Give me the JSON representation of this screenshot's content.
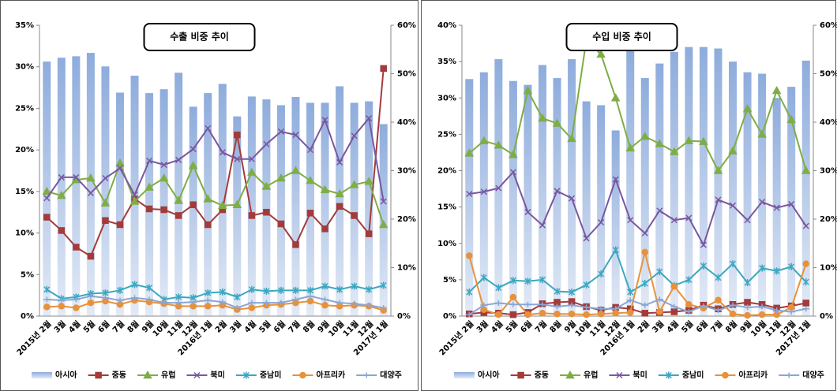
{
  "chart_data": [
    {
      "type": "bar-line",
      "title": "수출 비중 추이",
      "categories": [
        "2015년 2월",
        "3월",
        "4월",
        "5월",
        "6월",
        "7월",
        "8월",
        "9월",
        "10월",
        "11월",
        "12월",
        "2016년 1월",
        "2월",
        "3월",
        "4월",
        "5월",
        "6월",
        "7월",
        "8월",
        "9월",
        "10월",
        "11월",
        "12월",
        "2017년 1월"
      ],
      "ylim": [
        0,
        35
      ],
      "yticks": [
        {
          "value": 0,
          "label": "0%"
        },
        {
          "value": 5,
          "label": "5%"
        },
        {
          "value": 10,
          "label": "10%"
        },
        {
          "value": 15,
          "label": "15%"
        },
        {
          "value": 20,
          "label": "20%"
        },
        {
          "value": 25,
          "label": "25%"
        },
        {
          "value": 30,
          "label": "30%"
        },
        {
          "value": 35,
          "label": "35%"
        }
      ],
      "y2lim": [
        0,
        60
      ],
      "y2ticks": [
        {
          "value": 0,
          "label": "0%"
        },
        {
          "value": 10,
          "label": "10%"
        },
        {
          "value": 20,
          "label": "20%"
        },
        {
          "value": 30,
          "label": "30%"
        },
        {
          "value": 40,
          "label": "40%"
        },
        {
          "value": 50,
          "label": "50%"
        },
        {
          "value": 60,
          "label": "60%"
        }
      ],
      "legend": "bottom",
      "series": [
        {
          "name": "아시아",
          "type": "bar",
          "axis": "y2",
          "color": "#8eacdc",
          "values": [
            52.5,
            53.3,
            53.6,
            54.3,
            51.5,
            46.1,
            49.6,
            46.0,
            46.8,
            50.2,
            43.2,
            46.0,
            47.9,
            41.2,
            45.3,
            44.7,
            43.5,
            45.2,
            44.0,
            44.0,
            47.4,
            44.0,
            44.3,
            39.6
          ]
        },
        {
          "name": "중동",
          "type": "line",
          "marker": "square",
          "color": "#a33b3b",
          "values": [
            11.9,
            10.3,
            8.3,
            7.2,
            11.5,
            11.0,
            14.1,
            12.9,
            12.8,
            12.1,
            13.4,
            11.0,
            12.8,
            21.8,
            12.1,
            12.5,
            11.1,
            8.6,
            12.4,
            10.5,
            13.2,
            12.1,
            9.9,
            29.8
          ]
        },
        {
          "name": "유럽",
          "type": "line",
          "marker": "triangle",
          "color": "#7fad45",
          "values": [
            15.0,
            14.5,
            16.4,
            16.6,
            13.6,
            18.4,
            13.8,
            15.5,
            16.6,
            13.9,
            18.1,
            14.1,
            13.3,
            13.4,
            17.3,
            15.6,
            16.6,
            17.5,
            16.3,
            15.2,
            14.7,
            15.8,
            16.2,
            11.0
          ]
        },
        {
          "name": "북미",
          "type": "line",
          "marker": "x",
          "color": "#7a57a0",
          "values": [
            14.2,
            16.7,
            16.7,
            14.8,
            16.6,
            17.8,
            14.6,
            18.7,
            18.2,
            18.8,
            20.1,
            22.6,
            19.7,
            18.9,
            18.9,
            20.7,
            22.2,
            21.8,
            20.0,
            23.6,
            18.5,
            21.7,
            23.8,
            13.8
          ]
        },
        {
          "name": "중남미",
          "type": "line",
          "marker": "star",
          "color": "#3ba8c0",
          "values": [
            3.2,
            2.1,
            2.3,
            2.7,
            2.8,
            3.1,
            3.8,
            3.4,
            2.0,
            2.3,
            2.2,
            2.8,
            2.9,
            2.3,
            3.2,
            3.0,
            3.1,
            3.1,
            3.1,
            3.6,
            3.2,
            3.6,
            3.2,
            3.7
          ]
        },
        {
          "name": "아프리카",
          "type": "line",
          "marker": "circle",
          "color": "#e8913a",
          "values": [
            1.1,
            1.2,
            1.0,
            1.6,
            1.8,
            1.4,
            1.9,
            1.7,
            1.5,
            1.2,
            1.2,
            1.2,
            1.3,
            0.8,
            1.0,
            1.3,
            1.4,
            1.6,
            1.8,
            1.3,
            1.2,
            1.3,
            1.2,
            0.7
          ]
        },
        {
          "name": "대양주",
          "type": "line",
          "marker": "plus",
          "color": "#8aa6d6",
          "values": [
            2.0,
            1.9,
            2.0,
            2.4,
            2.2,
            1.9,
            2.2,
            2.0,
            1.6,
            1.6,
            1.7,
            1.9,
            1.7,
            1.0,
            1.6,
            1.6,
            1.6,
            2.0,
            2.4,
            2.0,
            1.6,
            1.5,
            1.3,
            1.0
          ]
        }
      ]
    },
    {
      "type": "bar-line",
      "title": "수입 비중 추이",
      "categories": [
        "2015년 2월",
        "3월",
        "4월",
        "5월",
        "6월",
        "7월",
        "8월",
        "9월",
        "10월",
        "11월",
        "12월",
        "2016년 1월",
        "2월",
        "3월",
        "4월",
        "5월",
        "6월",
        "7월",
        "8월",
        "9월",
        "10월",
        "11월",
        "12월",
        "2017년 1월"
      ],
      "ylim": [
        0,
        40
      ],
      "yticks": [
        {
          "value": 0,
          "label": "0%"
        },
        {
          "value": 5,
          "label": "5%"
        },
        {
          "value": 10,
          "label": "10%"
        },
        {
          "value": 15,
          "label": "15%"
        },
        {
          "value": 20,
          "label": "20%"
        },
        {
          "value": 25,
          "label": "25%"
        },
        {
          "value": 30,
          "label": "30%"
        },
        {
          "value": 35,
          "label": "35%"
        },
        {
          "value": 40,
          "label": "40%"
        }
      ],
      "y2lim": [
        0,
        60
      ],
      "y2ticks": [
        {
          "value": 0,
          "label": "0%"
        },
        {
          "value": 10,
          "label": "10%"
        },
        {
          "value": 20,
          "label": "20%"
        },
        {
          "value": 30,
          "label": "30%"
        },
        {
          "value": 40,
          "label": "40%"
        },
        {
          "value": 50,
          "label": "50%"
        },
        {
          "value": 60,
          "label": "60%"
        }
      ],
      "legend": "bottom",
      "series": [
        {
          "name": "아시아",
          "type": "bar",
          "axis": "y2",
          "color": "#8eacdc",
          "values": [
            48.9,
            50.3,
            53.0,
            48.5,
            47.7,
            51.8,
            49.1,
            53.0,
            44.3,
            43.5,
            38.3,
            54.8,
            49.1,
            52.1,
            54.5,
            55.5,
            55.5,
            55.2,
            52.5,
            50.3,
            50.0,
            45.0,
            47.3,
            52.7
          ]
        },
        {
          "name": "중동",
          "type": "line",
          "marker": "square",
          "color": "#a33b3b",
          "values": [
            0.3,
            0.5,
            0.4,
            0.2,
            0.5,
            1.7,
            1.9,
            2.0,
            1.3,
            0.8,
            1.2,
            1.0,
            0.4,
            0.5,
            0.6,
            0.8,
            1.5,
            1.0,
            1.6,
            1.9,
            1.6,
            1.1,
            1.4,
            1.8
          ]
        },
        {
          "name": "유럽",
          "type": "line",
          "marker": "triangle",
          "color": "#7fad45",
          "values": [
            22.4,
            24.1,
            23.5,
            22.2,
            31.0,
            27.2,
            26.5,
            24.4,
            38.0,
            36.0,
            30.0,
            23.1,
            24.7,
            23.7,
            22.6,
            24.1,
            24.0,
            20.0,
            22.7,
            28.5,
            25.0,
            31.0,
            27.0,
            20.0
          ]
        },
        {
          "name": "북미",
          "type": "line",
          "marker": "x",
          "color": "#7a57a0",
          "values": [
            16.8,
            17.1,
            17.6,
            19.8,
            14.3,
            12.5,
            17.2,
            16.2,
            10.7,
            12.9,
            18.8,
            13.2,
            11.4,
            14.5,
            13.2,
            13.5,
            9.8,
            16.0,
            15.2,
            13.2,
            15.7,
            14.9,
            15.4,
            12.4
          ]
        },
        {
          "name": "중남미",
          "type": "line",
          "marker": "star",
          "color": "#3ba8c0",
          "values": [
            3.3,
            5.3,
            3.9,
            4.9,
            4.8,
            5.0,
            3.4,
            3.3,
            4.3,
            5.8,
            9.1,
            3.3,
            4.5,
            6.1,
            4.2,
            5.0,
            6.9,
            5.3,
            7.2,
            4.6,
            6.6,
            6.2,
            6.8,
            4.7
          ]
        },
        {
          "name": "아프리카",
          "type": "line",
          "marker": "circle",
          "color": "#e8913a",
          "values": [
            8.3,
            0.9,
            0.2,
            2.6,
            0.2,
            0.4,
            0.3,
            0.3,
            0.2,
            0.3,
            0.4,
            0.5,
            8.8,
            0.6,
            4.1,
            1.6,
            1.1,
            2.2,
            0.3,
            0.1,
            0.2,
            0.2,
            1.2,
            7.2
          ]
        },
        {
          "name": "대양주",
          "type": "line",
          "marker": "plus",
          "color": "#8aa6d6",
          "values": [
            0.2,
            1.5,
            1.8,
            1.6,
            1.6,
            1.6,
            1.3,
            1.5,
            1.2,
            1.0,
            1.0,
            2.2,
            1.5,
            2.3,
            1.3,
            0.6,
            1.4,
            0.8,
            1.5,
            1.2,
            1.3,
            0.8,
            0.6,
            1.0
          ]
        }
      ]
    }
  ]
}
